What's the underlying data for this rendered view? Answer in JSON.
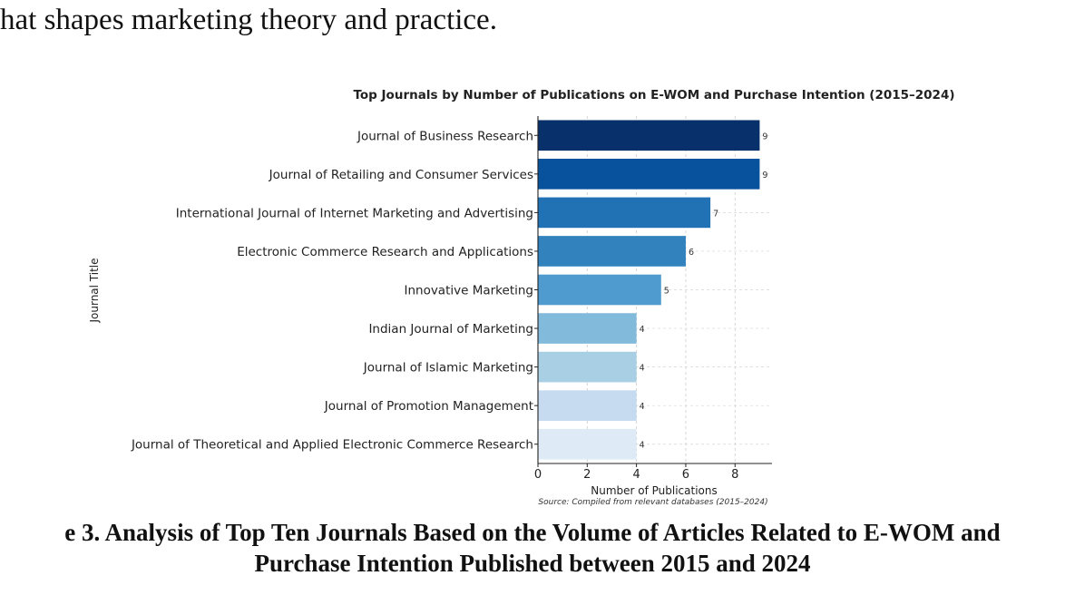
{
  "paragraph": {
    "line": "hat shapes marketing theory and practice."
  },
  "caption": {
    "line1": "e 3. Analysis of Top Ten Journals Based on the Volume of Articles Related to E-WOM and",
    "line2": "Purchase Intention Published between 2015 and 2024"
  },
  "chart_data": {
    "type": "bar",
    "orientation": "horizontal",
    "title": "Top Journals by Number of Publications on E-WOM and Purchase Intention (2015–2024)",
    "xlabel": "Number of Publications",
    "ylabel": "Journal Title",
    "source": "Source: Compiled from relevant databases (2015–2024)",
    "categories": [
      "Journal of Business Research",
      "Journal of Retailing and Consumer Services",
      "International Journal of Internet Marketing and Advertising",
      "Electronic Commerce Research and Applications",
      "Innovative Marketing",
      "Indian Journal of Marketing",
      "Journal of Islamic Marketing",
      "Journal of Promotion Management",
      "Journal of Theoretical and Applied Electronic Commerce Research"
    ],
    "values": [
      9,
      9,
      7,
      6,
      5,
      4,
      4,
      4,
      4
    ],
    "xlim": [
      0,
      9.5
    ],
    "xticks": [
      0,
      2,
      4,
      6,
      8
    ],
    "grid": true,
    "colors": [
      "#08306b",
      "#08519c",
      "#2171b5",
      "#3182bd",
      "#4f9bcf",
      "#82badb",
      "#a9cfe5",
      "#c6dbef",
      "#deebf7"
    ]
  }
}
